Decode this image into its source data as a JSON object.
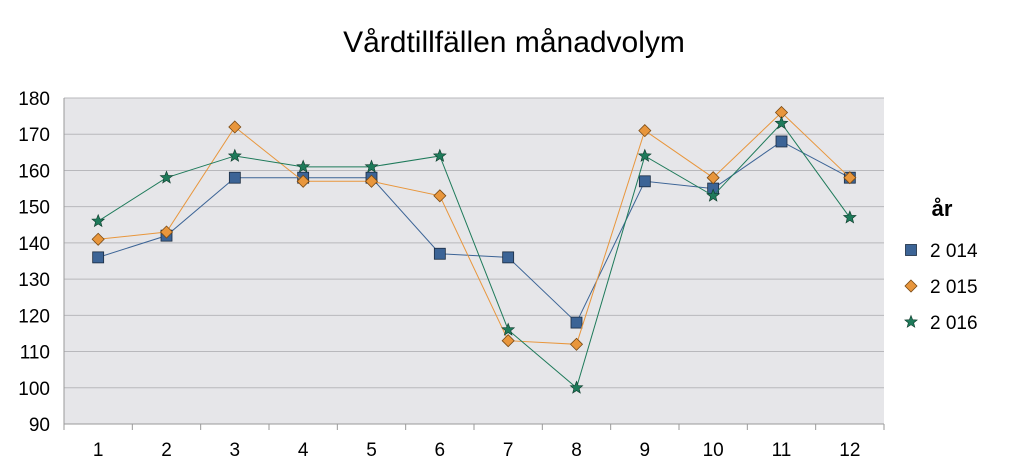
{
  "chart_data": {
    "type": "line",
    "title": "Vårdtillfällen månadvolym",
    "xlabel": "",
    "ylabel": "",
    "categories": [
      "1",
      "2",
      "3",
      "4",
      "5",
      "6",
      "7",
      "8",
      "9",
      "10",
      "11",
      "12"
    ],
    "ylim": [
      90,
      180
    ],
    "yticks": [
      "90",
      "100",
      "110",
      "120",
      "130",
      "140",
      "150",
      "160",
      "170",
      "180"
    ],
    "grid": true,
    "legend_position": "right",
    "legend_title": "år",
    "series": [
      {
        "name": "2 014",
        "color": "#3c6496",
        "marker": "square",
        "values": [
          136,
          142,
          158,
          158,
          158,
          137,
          136,
          118,
          157,
          155,
          168,
          158
        ]
      },
      {
        "name": "2 015",
        "color": "#e8963c",
        "marker": "diamond",
        "values": [
          141,
          143,
          172,
          157,
          157,
          153,
          113,
          112,
          171,
          158,
          176,
          158
        ]
      },
      {
        "name": "2 016",
        "color": "#1e7a5a",
        "marker": "star",
        "values": [
          146,
          158,
          164,
          161,
          161,
          164,
          116,
          100,
          164,
          153,
          173,
          147
        ]
      }
    ]
  }
}
